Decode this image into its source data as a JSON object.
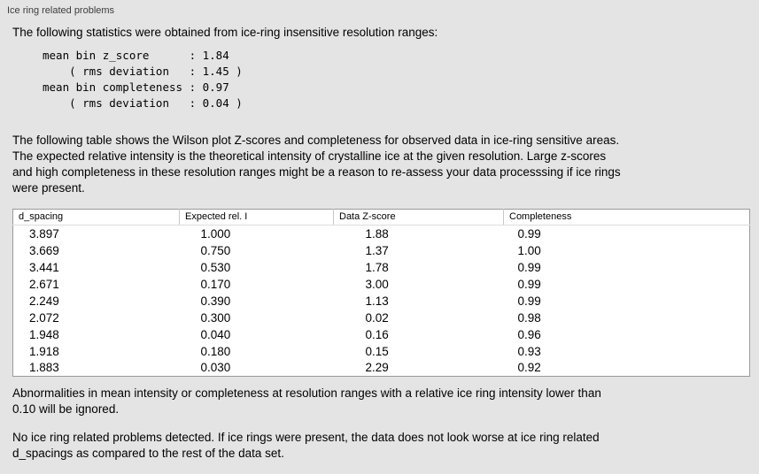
{
  "panel": {
    "title": "Ice ring related problems"
  },
  "intro": "The following statistics were obtained from ice-ring insensitive resolution ranges:",
  "stats_block": "mean bin z_score      : 1.84\n    ( rms deviation   : 1.45 )\nmean bin completeness : 0.97\n    ( rms deviation   : 0.04 )",
  "table_description": "The following table shows the Wilson plot Z-scores and completeness for observed data in ice-ring sensitive areas.\nThe expected relative intensity is the theoretical intensity of crystalline ice at the given resolution. Large z-scores\nand high completeness in these resolution ranges might be a reason to re-assess your data processsing if ice rings\nwere present.",
  "table": {
    "headers": [
      "d_spacing",
      "Expected rel. I",
      "Data Z-score",
      "Completeness"
    ],
    "rows": [
      [
        "3.897",
        "1.000",
        "1.88",
        "0.99"
      ],
      [
        "3.669",
        "0.750",
        "1.37",
        "1.00"
      ],
      [
        "3.441",
        "0.530",
        "1.78",
        "0.99"
      ],
      [
        "2.671",
        "0.170",
        "3.00",
        "0.99"
      ],
      [
        "2.249",
        "0.390",
        "1.13",
        "0.99"
      ],
      [
        "2.072",
        "0.300",
        "0.02",
        "0.98"
      ],
      [
        "1.948",
        "0.040",
        "0.16",
        "0.96"
      ],
      [
        "1.918",
        "0.180",
        "0.15",
        "0.93"
      ],
      [
        "1.883",
        "0.030",
        "2.29",
        "0.92"
      ]
    ]
  },
  "abnormalities_note": "Abnormalities in mean intensity or completeness at resolution ranges with a relative ice ring intensity lower than\n0.10 will be ignored.",
  "conclusion": "No ice ring related problems detected. If ice rings were present, the data does not look worse at ice ring related\nd_spacings as compared to the rest of the data set."
}
